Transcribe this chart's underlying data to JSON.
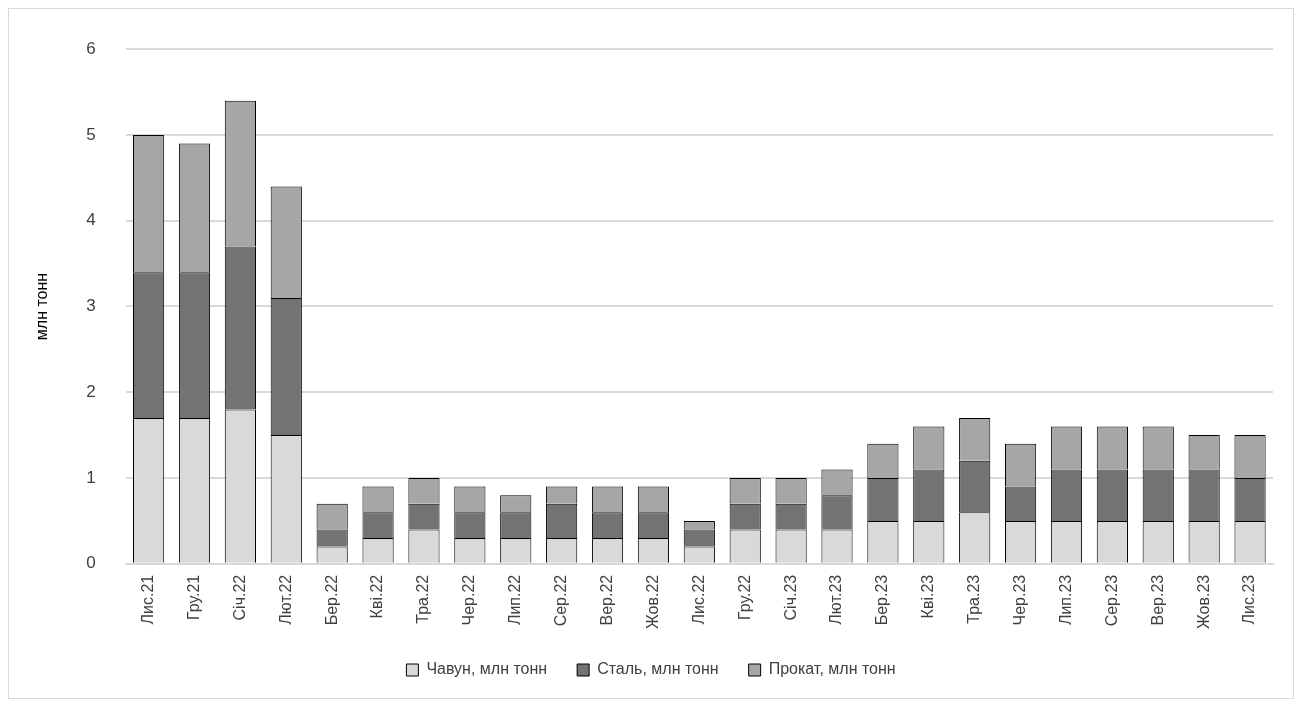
{
  "chart_data": {
    "type": "bar",
    "stacked": true,
    "ylabel": "млн тонн",
    "categories": [
      "Лис.21",
      "Гру.21",
      "Січ.22",
      "Лют.22",
      "Бер.22",
      "Кві.22",
      "Тра.22",
      "Чер.22",
      "Лип.22",
      "Сер.22",
      "Вер.22",
      "Жов.22",
      "Лис.22",
      "Гру.22",
      "Січ.23",
      "Лют.23",
      "Бер.23",
      "Кві.23",
      "Тра.23",
      "Чер.23",
      "Лип.23",
      "Сер.23",
      "Вер.23",
      "Жов.23",
      "Лис.23"
    ],
    "series": [
      {
        "name": "Чавун, млн тонн",
        "color": "#d9d9d9",
        "values": [
          1.7,
          1.7,
          1.8,
          1.5,
          0.2,
          0.3,
          0.4,
          0.3,
          0.3,
          0.3,
          0.3,
          0.3,
          0.2,
          0.4,
          0.4,
          0.4,
          0.5,
          0.5,
          0.6,
          0.5,
          0.5,
          0.5,
          0.5,
          0.5,
          0.5
        ]
      },
      {
        "name": "Сталь, млн тонн",
        "color": "#737373",
        "values": [
          1.7,
          1.7,
          1.9,
          1.6,
          0.2,
          0.3,
          0.3,
          0.3,
          0.3,
          0.4,
          0.3,
          0.3,
          0.2,
          0.3,
          0.3,
          0.4,
          0.5,
          0.6,
          0.6,
          0.4,
          0.6,
          0.6,
          0.6,
          0.6,
          0.5
        ]
      },
      {
        "name": "Прокат, млн тонн",
        "color": "#a6a6a6",
        "values": [
          1.6,
          1.5,
          1.7,
          1.3,
          0.3,
          0.3,
          0.3,
          0.3,
          0.2,
          0.2,
          0.3,
          0.3,
          0.1,
          0.3,
          0.3,
          0.3,
          0.4,
          0.5,
          0.5,
          0.5,
          0.5,
          0.5,
          0.5,
          0.4,
          0.5
        ]
      }
    ],
    "ylim": [
      0,
      6
    ],
    "yticks": [
      0,
      1,
      2,
      3,
      4,
      5,
      6
    ],
    "grid": "y",
    "legend": "bottom"
  }
}
